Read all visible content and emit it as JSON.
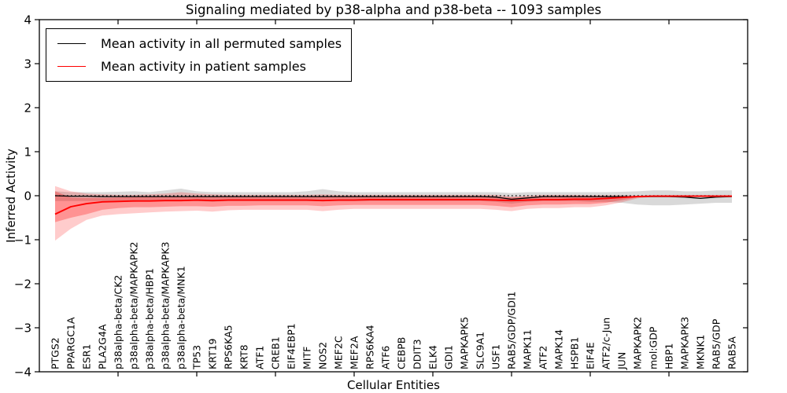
{
  "title": "Signaling mediated by p38-alpha and p38-beta -- 1093 samples",
  "legend": {
    "items": [
      {
        "label": "Mean activity in all permuted samples",
        "color": "#000000"
      },
      {
        "label": "Mean activity in patient samples",
        "color": "#ff0000"
      }
    ]
  },
  "colors": {
    "permuted_line": "#000000",
    "patient_line": "#ff0000",
    "permuted_band": "#808080",
    "permuted_band_alpha": 0.3,
    "patient_band": "#ff0000",
    "patient_band_outer_alpha": 0.2,
    "patient_band_inner_alpha": 0.28,
    "frame": "#000000",
    "background": "#ffffff",
    "zero_line": "#000000"
  },
  "chart_data": {
    "type": "line",
    "title": "Signaling mediated by p38-alpha and p38-beta -- 1093 samples",
    "xlabel": "Cellular Entities",
    "ylabel": "Inferred Activity",
    "ylim": [
      -4,
      4
    ],
    "yticks": [
      -4,
      -3,
      -2,
      -1,
      0,
      1,
      2,
      3,
      4
    ],
    "grid": false,
    "legend_position": "upper left",
    "reference_line": 0,
    "categories": [
      "PTGS2",
      "PPARGC1A",
      "ESR1",
      "PLA2G4A",
      "p38alpha-beta/CK2",
      "p38alpha-beta/MAPKAPK2",
      "p38alpha-beta/HBP1",
      "p38alpha-beta/MAPKAPK3",
      "p38alpha-beta/MNK1",
      "TP53",
      "KRT19",
      "RPS6KA5",
      "KRT8",
      "ATF1",
      "CREB1",
      "EIF4EBP1",
      "MITF",
      "NOS2",
      "MEF2C",
      "MEF2A",
      "RPS6KA4",
      "ATF6",
      "CEBPB",
      "DDIT3",
      "ELK4",
      "GDI1",
      "MAPKAPK5",
      "SLC9A1",
      "USF1",
      "RAB5/GDP/GDI1",
      "MAPK11",
      "ATF2",
      "MAPK14",
      "HSPB1",
      "EIF4E",
      "ATF2/c-Jun",
      "JUN",
      "MAPKAPK2",
      "mol:GDP",
      "HBP1",
      "MAPKAPK3",
      "MKNK1",
      "RAB5/GDP",
      "RAB5A"
    ],
    "series": [
      {
        "name": "Mean activity in all permuted samples",
        "color": "#000000",
        "values": [
          0.0,
          -0.01,
          -0.01,
          -0.02,
          -0.02,
          -0.02,
          -0.02,
          -0.02,
          -0.02,
          -0.02,
          -0.02,
          -0.02,
          -0.02,
          -0.02,
          -0.02,
          -0.02,
          -0.02,
          -0.02,
          -0.02,
          -0.02,
          -0.02,
          -0.02,
          -0.02,
          -0.02,
          -0.02,
          -0.02,
          -0.02,
          -0.02,
          -0.03,
          -0.08,
          -0.05,
          -0.02,
          -0.02,
          -0.02,
          -0.02,
          -0.02,
          -0.02,
          -0.02,
          -0.02,
          -0.02,
          -0.03,
          -0.06,
          -0.03,
          -0.02
        ]
      },
      {
        "name": "Mean activity in patient samples",
        "color": "#ff0000",
        "values": [
          -0.42,
          -0.25,
          -0.18,
          -0.14,
          -0.13,
          -0.12,
          -0.12,
          -0.11,
          -0.11,
          -0.1,
          -0.11,
          -0.1,
          -0.1,
          -0.1,
          -0.1,
          -0.1,
          -0.1,
          -0.11,
          -0.1,
          -0.1,
          -0.09,
          -0.09,
          -0.09,
          -0.09,
          -0.09,
          -0.09,
          -0.09,
          -0.09,
          -0.1,
          -0.11,
          -0.1,
          -0.09,
          -0.09,
          -0.08,
          -0.08,
          -0.06,
          -0.04,
          -0.02,
          -0.01,
          -0.01,
          -0.01,
          -0.01,
          -0.01,
          -0.01
        ]
      }
    ],
    "bands": [
      {
        "name": "permuted-std-band",
        "color": "#808080",
        "alpha": 0.3,
        "upper": [
          0.1,
          0.08,
          0.08,
          0.08,
          0.09,
          0.1,
          0.08,
          0.12,
          0.16,
          0.1,
          0.08,
          0.08,
          0.08,
          0.08,
          0.08,
          0.08,
          0.1,
          0.15,
          0.1,
          0.08,
          0.08,
          0.08,
          0.08,
          0.08,
          0.08,
          0.08,
          0.08,
          0.08,
          0.08,
          0.06,
          0.08,
          0.08,
          0.08,
          0.08,
          0.08,
          0.08,
          0.09,
          0.1,
          0.12,
          0.12,
          0.1,
          0.1,
          0.12,
          0.12
        ],
        "lower": [
          -0.12,
          -0.12,
          -0.12,
          -0.12,
          -0.12,
          -0.14,
          -0.12,
          -0.12,
          -0.12,
          -0.12,
          -0.14,
          -0.12,
          -0.12,
          -0.12,
          -0.12,
          -0.12,
          -0.12,
          -0.12,
          -0.12,
          -0.12,
          -0.12,
          -0.12,
          -0.12,
          -0.12,
          -0.12,
          -0.12,
          -0.12,
          -0.12,
          -0.14,
          -0.18,
          -0.14,
          -0.12,
          -0.12,
          -0.12,
          -0.14,
          -0.14,
          -0.16,
          -0.2,
          -0.22,
          -0.22,
          -0.2,
          -0.18,
          -0.16,
          -0.16
        ]
      },
      {
        "name": "patient-outer-band",
        "color": "#ff0000",
        "alpha": 0.2,
        "upper": [
          0.22,
          0.1,
          0.05,
          0.03,
          0.02,
          0.02,
          0.03,
          0.05,
          0.08,
          0.05,
          0.03,
          0.02,
          0.02,
          0.02,
          0.02,
          0.02,
          0.02,
          0.03,
          0.02,
          0.02,
          0.02,
          0.02,
          0.02,
          0.02,
          0.02,
          0.02,
          0.02,
          0.02,
          0.02,
          -0.02,
          0.0,
          0.02,
          0.02,
          0.02,
          0.01,
          0.01,
          0.01,
          0.0,
          0.01,
          0.01,
          0.01,
          0.01,
          0.01,
          0.01
        ],
        "lower": [
          -1.02,
          -0.75,
          -0.55,
          -0.45,
          -0.42,
          -0.4,
          -0.38,
          -0.36,
          -0.35,
          -0.34,
          -0.36,
          -0.33,
          -0.32,
          -0.32,
          -0.32,
          -0.32,
          -0.32,
          -0.35,
          -0.32,
          -0.3,
          -0.3,
          -0.3,
          -0.3,
          -0.3,
          -0.3,
          -0.3,
          -0.3,
          -0.3,
          -0.32,
          -0.35,
          -0.3,
          -0.28,
          -0.28,
          -0.26,
          -0.26,
          -0.22,
          -0.15,
          -0.06,
          -0.02,
          -0.02,
          -0.02,
          -0.02,
          -0.02,
          -0.02
        ]
      },
      {
        "name": "patient-inner-band",
        "color": "#ff0000",
        "alpha": 0.28,
        "upper": [
          0.1,
          -0.04,
          -0.05,
          -0.05,
          -0.04,
          -0.03,
          -0.03,
          -0.03,
          -0.03,
          -0.03,
          -0.03,
          -0.03,
          -0.03,
          -0.03,
          -0.03,
          -0.03,
          -0.03,
          -0.02,
          -0.02,
          -0.02,
          -0.02,
          -0.02,
          -0.02,
          -0.02,
          -0.02,
          -0.02,
          -0.02,
          -0.02,
          -0.03,
          -0.04,
          -0.03,
          -0.02,
          -0.02,
          -0.02,
          -0.02,
          -0.02,
          -0.01,
          -0.01,
          0.0,
          0.0,
          0.0,
          0.0,
          0.0,
          0.0
        ],
        "lower": [
          -0.6,
          -0.5,
          -0.42,
          -0.32,
          -0.28,
          -0.26,
          -0.26,
          -0.25,
          -0.24,
          -0.24,
          -0.25,
          -0.23,
          -0.23,
          -0.22,
          -0.22,
          -0.22,
          -0.22,
          -0.24,
          -0.22,
          -0.21,
          -0.21,
          -0.21,
          -0.21,
          -0.21,
          -0.21,
          -0.21,
          -0.21,
          -0.21,
          -0.23,
          -0.26,
          -0.22,
          -0.2,
          -0.2,
          -0.19,
          -0.19,
          -0.16,
          -0.1,
          -0.04,
          -0.01,
          -0.01,
          -0.01,
          -0.01,
          -0.01,
          -0.01
        ]
      }
    ]
  }
}
